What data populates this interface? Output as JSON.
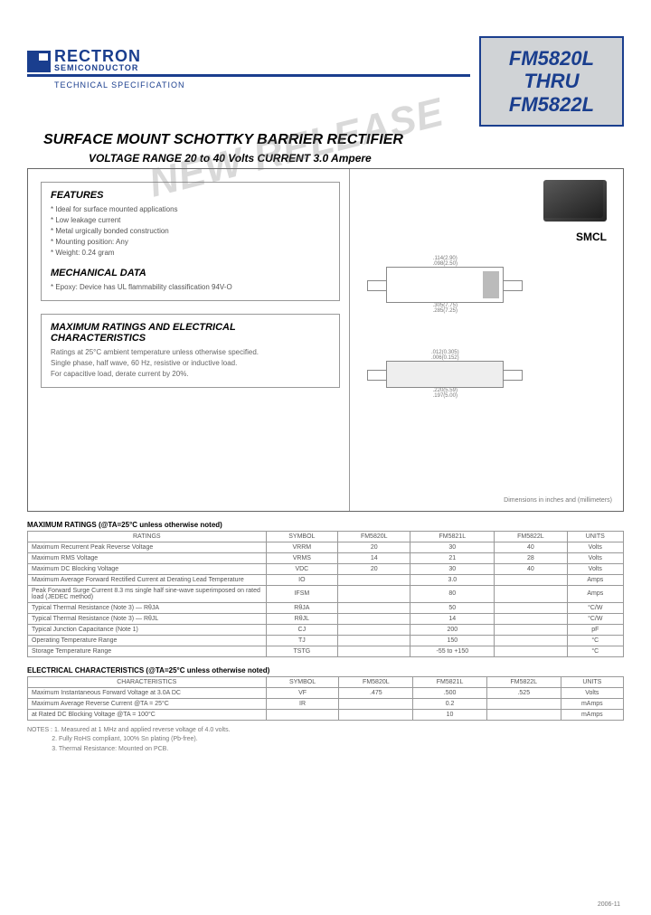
{
  "brand": {
    "name": "RECTRON",
    "sub": "SEMICONDUCTOR",
    "spec": "TECHNICAL SPECIFICATION"
  },
  "part_box": {
    "l1": "FM5820L",
    "l2": "THRU",
    "l3": "FM5822L"
  },
  "title": {
    "main": "SURFACE MOUNT SCHOTTKY BARRIER RECTIFIER",
    "sub": "VOLTAGE RANGE 20 to 40 Volts  CURRENT 3.0 Ampere"
  },
  "watermark": "NEW RELEASE",
  "features": {
    "heading": "FEATURES",
    "items": [
      "Ideal for surface mounted applications",
      "Low leakage current",
      "Metal urgically bonded construction",
      "Mounting position: Any",
      "Weight: 0.24 gram"
    ]
  },
  "mech": {
    "heading": "MECHANICAL DATA",
    "line": "Epoxy: Device has UL flammability classification 94V-O"
  },
  "maxr": {
    "heading": "MAXIMUM RATINGS AND ELECTRICAL CHARACTERISTICS",
    "l1": "Ratings at 25°C ambient temperature unless otherwise specified.",
    "l2": "Single phase, half wave, 60 Hz, resistive or inductive load.",
    "l3": "For capacitive load, derate current by 20%."
  },
  "pkg": "SMCL",
  "dims_note": "Dimensions in inches and (millimeters)",
  "ratings_caption": "MAXIMUM RATINGS (@TA=25°C unless otherwise noted)",
  "ratings": {
    "headers": [
      "RATINGS",
      "SYMBOL",
      "FM5820L",
      "FM5821L",
      "FM5822L",
      "UNITS"
    ],
    "rows": [
      [
        "Maximum Recurrent Peak Reverse Voltage",
        "VRRM",
        "20",
        "30",
        "40",
        "Volts"
      ],
      [
        "Maximum RMS Voltage",
        "VRMS",
        "14",
        "21",
        "28",
        "Volts"
      ],
      [
        "Maximum DC Blocking Voltage",
        "VDC",
        "20",
        "30",
        "40",
        "Volts"
      ],
      [
        "Maximum Average Forward Rectified Current at Derating Lead Temperature",
        "IO",
        "",
        "3.0",
        "",
        "Amps"
      ],
      [
        "Peak Forward Surge Current 8.3 ms single half sine-wave superimposed on rated load (JEDEC method)",
        "IFSM",
        "",
        "80",
        "",
        "Amps"
      ],
      [
        "Typical Thermal Resistance (Note 3) — RθJA",
        "RθJA",
        "",
        "50",
        "",
        "°C/W"
      ],
      [
        "Typical Thermal Resistance (Note 3) — RθJL",
        "RθJL",
        "",
        "14",
        "",
        "°C/W"
      ],
      [
        "Typical Junction Capacitance (Note 1)",
        "CJ",
        "",
        "200",
        "",
        "pF"
      ],
      [
        "Operating Temperature Range",
        "TJ",
        "",
        "150",
        "",
        "°C"
      ],
      [
        "Storage Temperature Range",
        "TSTG",
        "",
        "-55 to +150",
        "",
        "°C"
      ]
    ]
  },
  "elec_caption": "ELECTRICAL CHARACTERISTICS (@TA=25°C unless otherwise noted)",
  "elec": {
    "headers": [
      "CHARACTERISTICS",
      "SYMBOL",
      "FM5820L",
      "FM5821L",
      "FM5822L",
      "UNITS"
    ],
    "rows": [
      [
        "Maximum Instantaneous Forward Voltage at 3.0A DC",
        "VF",
        ".475",
        ".500",
        ".525",
        "Volts"
      ],
      [
        "Maximum Average Reverse Current  @TA = 25°C",
        "IR",
        "",
        "0.2",
        "",
        "mAmps"
      ],
      [
        "at Rated DC Blocking Voltage  @TA = 100°C",
        "",
        "",
        "10",
        "",
        "mAmps"
      ]
    ]
  },
  "notes": {
    "label": "NOTES :",
    "n1": "1. Measured at 1 MHz and applied reverse voltage of 4.0 volts.",
    "n2": "2. Fully RoHS compliant, 100% Sn plating (Pb-free).",
    "n3": "3. Thermal Resistance: Mounted on PCB."
  },
  "date": "2006-11",
  "colors": {
    "brand": "#1a3e8e",
    "frame": "#666666",
    "grid": "#999999",
    "text_muted": "#555555",
    "boxbg": "#d0d3d6"
  }
}
